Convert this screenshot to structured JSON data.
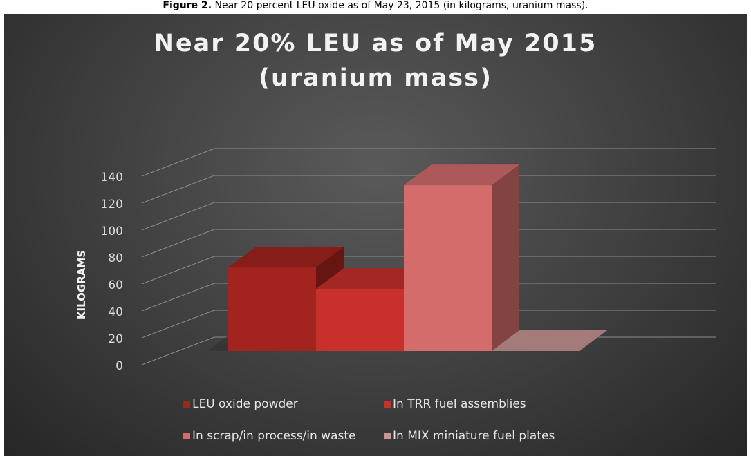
{
  "caption": {
    "label": "Figure 2.",
    "text": "Near 20 percent LEU oxide as of May 23, 2015 (in kilograms, uranium mass)."
  },
  "chart_data": {
    "type": "bar3d",
    "title": "Near 20% LEU as of May 2015 (uranium mass)",
    "y_label": "KILOGRAMS",
    "categories": [
      null
    ],
    "series": [
      {
        "name": "LEU oxide powder",
        "color": "#a3231f",
        "values": [
          62
        ]
      },
      {
        "name": "In TRR fuel assemblies",
        "color": "#c8302c",
        "values": [
          46
        ]
      },
      {
        "name": "In scrap/in process/in waste",
        "color": "#d46c6c",
        "values": [
          123
        ]
      },
      {
        "name": "In MIX miniature fuel plates",
        "color": "#c99595",
        "values": [
          0
        ]
      }
    ],
    "ylim": [
      0,
      160
    ],
    "yticks": [
      0,
      20,
      40,
      60,
      80,
      100,
      120,
      140
    ],
    "grid": true,
    "legend": "bottom"
  }
}
